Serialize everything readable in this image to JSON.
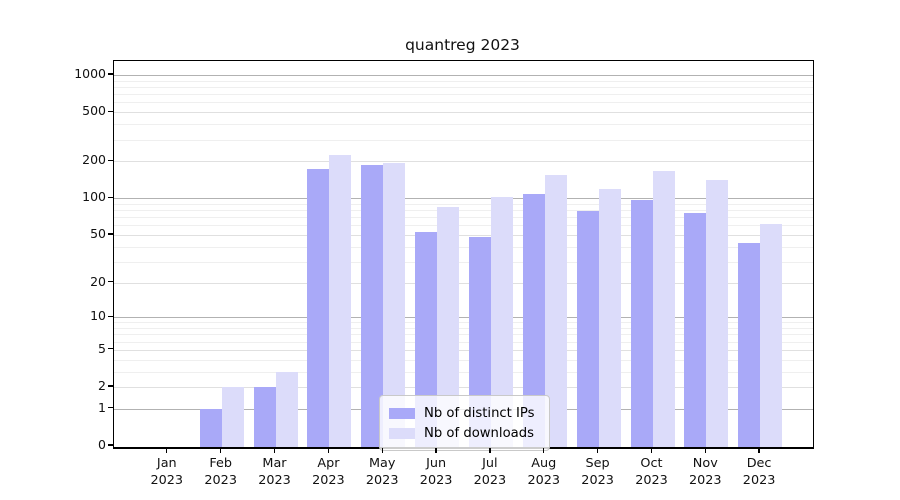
{
  "chart_data": {
    "type": "bar",
    "title": "quantreg 2023",
    "categories": [
      [
        "Jan",
        "2023"
      ],
      [
        "Feb",
        "2023"
      ],
      [
        "Mar",
        "2023"
      ],
      [
        "Apr",
        "2023"
      ],
      [
        "May",
        "2023"
      ],
      [
        "Jun",
        "2023"
      ],
      [
        "Jul",
        "2023"
      ],
      [
        "Aug",
        "2023"
      ],
      [
        "Sep",
        "2023"
      ],
      [
        "Oct",
        "2023"
      ],
      [
        "Nov",
        "2023"
      ],
      [
        "Dec",
        "2023"
      ]
    ],
    "series": [
      {
        "name": "Nb of distinct IPs",
        "color": "#a9a9f8",
        "values": [
          0,
          1,
          2,
          174,
          186,
          53,
          48,
          108,
          78,
          97,
          76,
          43
        ]
      },
      {
        "name": "Nb of downloads",
        "color": "#dcdcfa",
        "values": [
          0,
          2,
          3,
          226,
          195,
          85,
          103,
          154,
          118,
          166,
          141,
          62
        ]
      }
    ],
    "yticks": [
      0,
      1,
      2,
      5,
      10,
      20,
      50,
      100,
      200,
      500,
      1000
    ],
    "yscale": "log1p",
    "ylim": [
      0,
      1250
    ],
    "grid": true,
    "legend_position": "lower center",
    "axis_color": "#000000",
    "grid_major_color": "#b2b2b2",
    "grid_minor_color": "#efefef",
    "legend_border_color": "#c9c9c9"
  }
}
